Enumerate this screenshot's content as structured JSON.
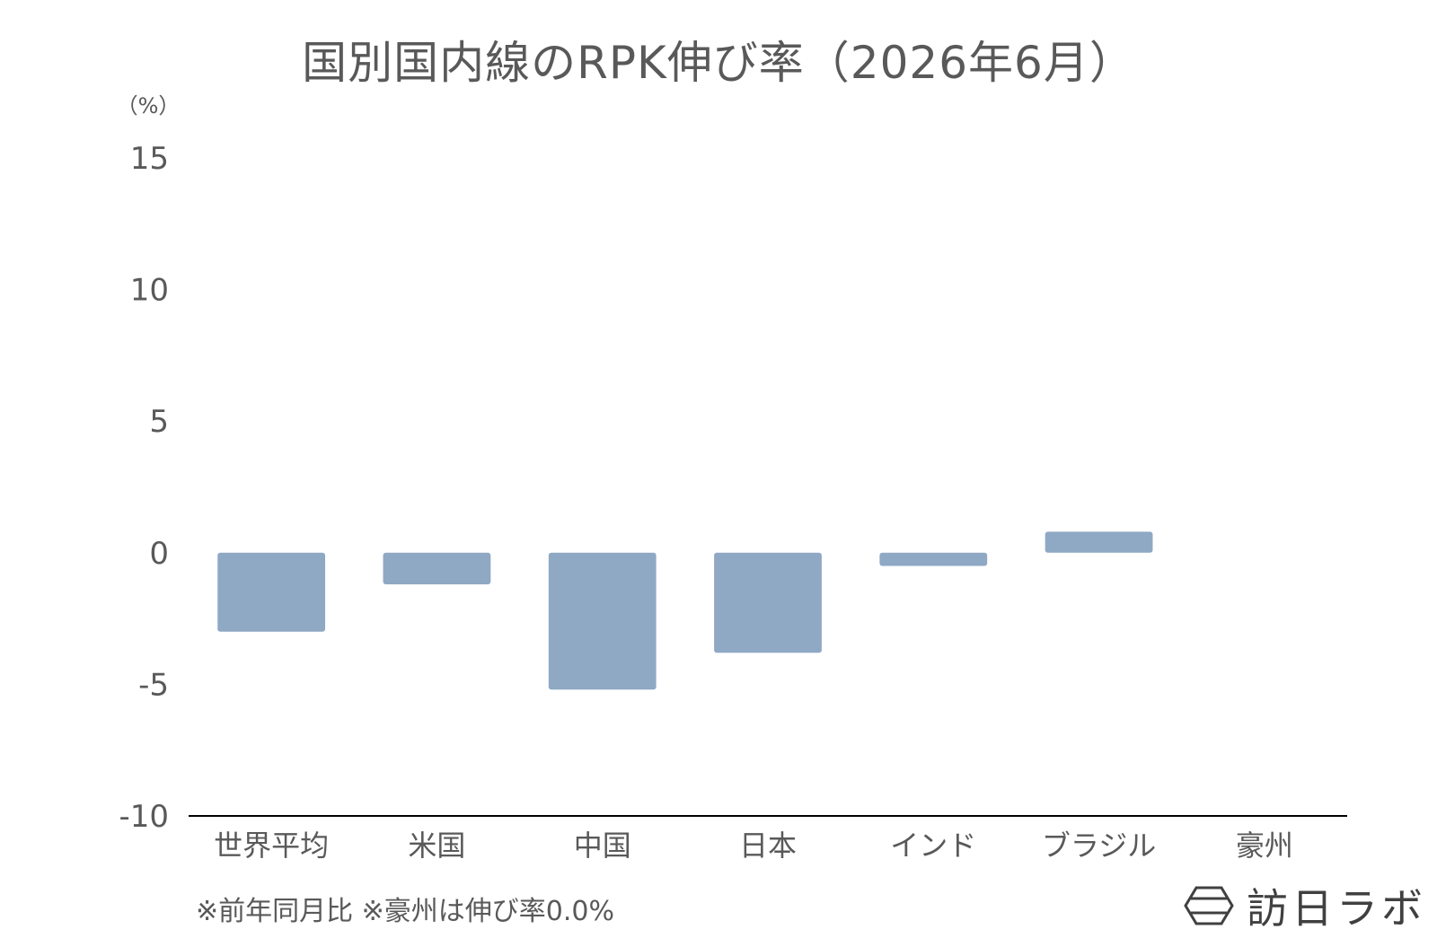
{
  "chart_data": {
    "type": "bar",
    "title": "国別国内線のRPK伸び率（2026年6月）",
    "unit_label": "（%）",
    "categories": [
      "世界平均",
      "米国",
      "中国",
      "日本",
      "インド",
      "ブラジル",
      "豪州"
    ],
    "series": [
      {
        "values": [
          -3.0,
          -1.2,
          -5.2,
          -3.8,
          -0.5,
          0.8,
          0.0
        ]
      }
    ],
    "yticks": [
      "15",
      "10",
      "5",
      "0",
      "-5",
      "-10"
    ],
    "ylim": [
      -10,
      15
    ],
    "grid": false,
    "bar_color": "#8fa8c4"
  },
  "footnote": "※前年同月比 ※豪州は伸び率0.0%",
  "brand": {
    "name": "訪日ラボ",
    "icon": "hexagon-logo-icon"
  }
}
